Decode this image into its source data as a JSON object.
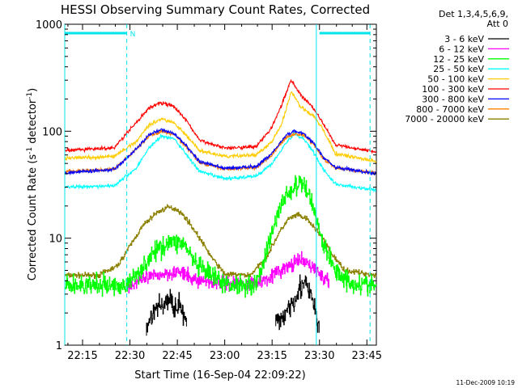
{
  "title": "HESSI Observing Summary Count Rates, Corrected",
  "footer_timestamp": "11-Dec-2009 10:19",
  "chart_data": {
    "type": "line",
    "title": "HESSI Observing Summary Count Rates, Corrected",
    "xlabel": "Start Time (16-Sep-04 22:09:22)",
    "ylabel_main": "Corrected Count Rate (s",
    "ylabel_sup1": "-1",
    "ylabel_mid": " detector",
    "ylabel_sup2": "-1",
    "ylabel_end": ")",
    "y_scale": "log",
    "ylim": [
      1,
      1000
    ],
    "xlim": [
      "22:09:22",
      "23:48:00"
    ],
    "x_ticks": [
      "22:15",
      "22:30",
      "22:45",
      "23:00",
      "23:15",
      "23:30",
      "23:45"
    ],
    "y_ticks": [
      "1",
      "10",
      "100",
      "1000"
    ],
    "legend_header": [
      "Det 1,3,4,5,6,9,",
      "Att 0"
    ],
    "legend_position": "outside-right",
    "flag_label": "N",
    "flag_bars": [
      [
        "22:09:22",
        "22:29:00"
      ],
      [
        "23:30:00",
        "23:46:00"
      ]
    ],
    "dashed_lines": [
      "22:29:00",
      "23:46:00"
    ],
    "solid_lines": [
      "22:09:22",
      "23:29:00"
    ],
    "series": [
      {
        "name": "3 - 6 keV",
        "color": "#000000",
        "gaps": [
          [
            "22:28:00",
            "22:35:00"
          ],
          [
            "22:48:00",
            "23:16:00"
          ],
          [
            "23:30:00",
            "23:48:00"
          ]
        ],
        "x": [
          "22:35:00",
          "22:38:00",
          "22:42:00",
          "22:46:00",
          "22:48:00",
          "23:16:00",
          "23:19:00",
          "23:22:00",
          "23:25:00",
          "23:28:00",
          "23:30:00"
        ],
        "y": [
          1.5,
          2.2,
          2.6,
          2.3,
          1.5,
          1.5,
          2.0,
          2.8,
          3.9,
          2.5,
          1.3
        ]
      },
      {
        "name": "6 - 12 keV",
        "color": "#ff00ff",
        "gaps": [
          [
            "22:09:22",
            "22:29:00"
          ]
        ],
        "x": [
          "22:29:00",
          "22:35:00",
          "22:40:00",
          "22:45:00",
          "22:50:00",
          "23:00:00",
          "23:10:00",
          "23:15:00",
          "23:20:00",
          "23:24:00",
          "23:28:00",
          "23:33:00"
        ],
        "y": [
          3.5,
          4.2,
          4.6,
          4.9,
          4.1,
          3.8,
          3.8,
          4.5,
          5.4,
          6.2,
          5.4,
          3.7
        ]
      },
      {
        "name": "12 - 25 keV",
        "color": "#00ff00",
        "x": [
          "22:09:22",
          "22:20:00",
          "22:29:00",
          "22:33:00",
          "22:38:00",
          "22:42:00",
          "22:47:00",
          "22:51:00",
          "23:00:00",
          "23:10:00",
          "23:14:00",
          "23:18:00",
          "23:22:00",
          "23:25:00",
          "23:28:00",
          "23:31:00",
          "23:35:00",
          "23:40:00",
          "23:48:00"
        ],
        "y": [
          3.6,
          3.6,
          3.6,
          5.0,
          7.5,
          9.2,
          9.0,
          5.5,
          3.7,
          3.7,
          9.0,
          22.0,
          30.0,
          32.0,
          20.0,
          9.0,
          5.0,
          3.8,
          3.6
        ]
      },
      {
        "name": "25 - 50 keV",
        "color": "#00ffff",
        "x": [
          "22:09:22",
          "22:25:00",
          "22:32:00",
          "22:36:00",
          "22:40:00",
          "22:44:00",
          "22:48:00",
          "22:52:00",
          "23:00:00",
          "23:10:00",
          "23:15:00",
          "23:19:00",
          "23:22:00",
          "23:25:00",
          "23:28:00",
          "23:31:00",
          "23:35:00",
          "23:48:00"
        ],
        "y": [
          30,
          31,
          45,
          70,
          90,
          85,
          60,
          42,
          36,
          38,
          50,
          75,
          95,
          85,
          65,
          45,
          32,
          28
        ]
      },
      {
        "name": "50 - 100 keV",
        "color": "#ffcc00",
        "x": [
          "22:09:22",
          "22:25:00",
          "22:32:00",
          "22:36:00",
          "22:40:00",
          "22:44:00",
          "22:48:00",
          "22:52:00",
          "23:00:00",
          "23:10:00",
          "23:15:00",
          "23:18:00",
          "23:21:00",
          "23:24:00",
          "23:28:00",
          "23:31:00",
          "23:35:00",
          "23:48:00"
        ],
        "y": [
          56,
          58,
          80,
          115,
          130,
          120,
          90,
          66,
          58,
          60,
          80,
          115,
          235,
          170,
          140,
          105,
          62,
          52
        ]
      },
      {
        "name": "100 - 300 keV",
        "color": "#ff0000",
        "x": [
          "22:09:22",
          "22:25:00",
          "22:32:00",
          "22:36:00",
          "22:40:00",
          "22:44:00",
          "22:48:00",
          "22:52:00",
          "23:00:00",
          "23:10:00",
          "23:15:00",
          "23:18:00",
          "23:21:00",
          "23:24:00",
          "23:28:00",
          "23:31:00",
          "23:35:00",
          "23:48:00"
        ],
        "y": [
          66,
          70,
          120,
          165,
          185,
          170,
          125,
          82,
          70,
          72,
          110,
          175,
          300,
          220,
          165,
          120,
          75,
          64
        ]
      },
      {
        "name": "300 - 800 keV",
        "color": "#0000ff",
        "x": [
          "22:09:22",
          "22:25:00",
          "22:32:00",
          "22:36:00",
          "22:40:00",
          "22:44:00",
          "22:48:00",
          "22:52:00",
          "23:00:00",
          "23:10:00",
          "23:15:00",
          "23:19:00",
          "23:22:00",
          "23:25:00",
          "23:28:00",
          "23:31:00",
          "23:35:00",
          "23:48:00"
        ],
        "y": [
          41,
          44,
          68,
          92,
          103,
          95,
          72,
          52,
          45,
          47,
          62,
          90,
          100,
          95,
          78,
          58,
          46,
          40
        ]
      },
      {
        "name": "800 - 7000 keV",
        "color": "#ff8000",
        "x": [
          "22:09:22",
          "22:25:00",
          "22:32:00",
          "22:36:00",
          "22:40:00",
          "22:44:00",
          "22:48:00",
          "22:52:00",
          "23:00:00",
          "23:10:00",
          "23:15:00",
          "23:19:00",
          "23:22:00",
          "23:25:00",
          "23:28:00",
          "23:31:00",
          "23:35:00",
          "23:48:00"
        ],
        "y": [
          42,
          44,
          68,
          90,
          100,
          93,
          71,
          51,
          44,
          46,
          60,
          85,
          95,
          92,
          76,
          57,
          45,
          41
        ]
      },
      {
        "name": "7000 - 20000 keV",
        "color": "#8b8000",
        "x": [
          "22:09:22",
          "22:20:00",
          "22:26:00",
          "22:30:00",
          "22:34:00",
          "22:38:00",
          "22:42:00",
          "22:45:00",
          "22:48:00",
          "22:52:00",
          "22:56:00",
          "23:00:00",
          "23:08:00",
          "23:13:00",
          "23:17:00",
          "23:20:00",
          "23:23:00",
          "23:26:00",
          "23:30:00",
          "23:34:00",
          "23:38:00",
          "23:48:00"
        ],
        "y": [
          4.5,
          4.5,
          5.5,
          8.5,
          13.0,
          17.0,
          19.5,
          18.5,
          15.0,
          10.0,
          6.5,
          4.6,
          4.5,
          6.5,
          11.0,
          15.0,
          16.5,
          15.0,
          11.0,
          7.0,
          5.0,
          4.5
        ]
      }
    ]
  }
}
